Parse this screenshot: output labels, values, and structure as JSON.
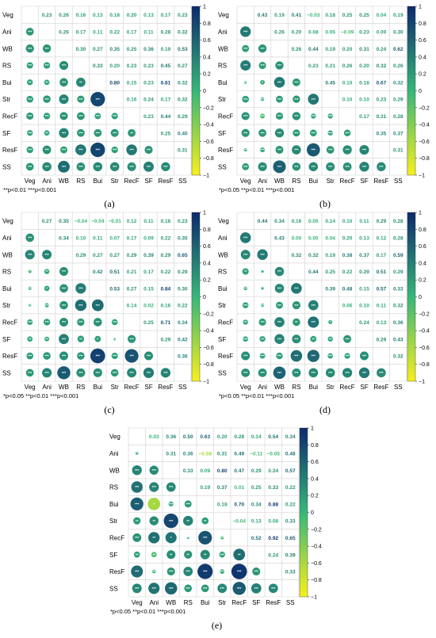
{
  "colors": {
    "low": "#f7f01a",
    "mid": "#35b779",
    "high": "#0c2a6e",
    "grid": "#d0d0d0"
  },
  "chart_data": [
    {
      "type": "heatmap",
      "panel_label": "(a)",
      "variables": [
        "Veg",
        "Ani",
        "WB",
        "RS",
        "Bui",
        "Str",
        "RecF",
        "SF",
        "ResF",
        "SS"
      ],
      "footnote": "**p<0.01   ***p<0.001",
      "colorbar_ticks": [
        "1",
        "0.8",
        "0.6",
        "0.4",
        "0.2",
        "0",
        "−0.2",
        "−0.4",
        "−0.6",
        "−0.8",
        "−1"
      ],
      "upper_values": [
        [
          "0.23",
          "0.26",
          "0.16",
          "0.13",
          "0.18",
          "0.20",
          "0.13",
          "0.17",
          "0.23"
        ],
        [
          "0.26",
          "0.17",
          "0.11",
          "0.22",
          "0.17",
          "0.11",
          "0.28",
          "0.32"
        ],
        [
          "0.30",
          "0.27",
          "0.35",
          "0.25",
          "0.36",
          "0.19",
          "0.53"
        ],
        [
          "0.33",
          "0.20",
          "0.23",
          "0.23",
          "0.45",
          "0.27"
        ],
        [
          "0.80",
          "0.15",
          "0.23",
          "0.81",
          "0.32"
        ],
        [
          "0.16",
          "0.24",
          "0.17",
          "0.32"
        ],
        [
          "0.23",
          "0.44",
          "0.29"
        ],
        [
          "0.25",
          "0.40"
        ],
        [
          "0.31"
        ]
      ],
      "lower_sig": [
        [
          "***"
        ],
        [
          "***",
          "***"
        ],
        [
          "***",
          "***",
          "***"
        ],
        [
          "**",
          "**",
          "***",
          "**"
        ],
        [
          "***",
          "***",
          "***",
          "***",
          "***"
        ],
        [
          "***",
          "***",
          "***",
          "***",
          "***",
          "***"
        ],
        [
          "***",
          "**",
          "***",
          "***",
          "***",
          "***",
          "**"
        ],
        [
          "***",
          "***",
          "***",
          "***",
          "***",
          "***",
          "***",
          "***"
        ],
        [
          "***",
          "***",
          "***",
          "***",
          "***",
          "***",
          "***",
          "***",
          "***"
        ]
      ]
    },
    {
      "type": "heatmap",
      "panel_label": "(b)",
      "variables": [
        "Veg",
        "Ani",
        "WB",
        "RS",
        "Bui",
        "Str",
        "RecF",
        "SF",
        "ResF",
        "SS"
      ],
      "footnote": "*p<0.05   **p<0.01   ***p<0.001",
      "colorbar_ticks": [
        "1",
        "0.8",
        "0.6",
        "0.4",
        "0.2",
        "0",
        "−0.2",
        "−0.4",
        "−0.6",
        "−0.8",
        "−1"
      ],
      "upper_values": [
        [
          "0.43",
          "0.19",
          "0.41",
          "−0.03",
          "0.18",
          "0.25",
          "0.25",
          "0.04",
          "0.19"
        ],
        [
          "0.26",
          "0.20",
          "0.08",
          "0.05",
          "−0.09",
          "0.23",
          "0.09",
          "0.30"
        ],
        [
          "0.26",
          "0.44",
          "0.19",
          "0.20",
          "0.31",
          "0.24",
          "0.62"
        ],
        [
          "0.23",
          "0.21",
          "0.26",
          "0.20",
          "0.32",
          "0.26"
        ],
        [
          "0.45",
          "0.10",
          "0.18",
          "0.67",
          "0.32"
        ],
        [
          "0.10",
          "0.10",
          "0.23",
          "0.29"
        ],
        [
          "0.17",
          "0.31",
          "0.28"
        ],
        [
          "0.35",
          "0.37"
        ],
        [
          "0.31"
        ]
      ],
      "lower_sig": [
        [
          "***"
        ],
        [
          "***",
          "***"
        ],
        [
          "***",
          "***",
          "***"
        ],
        [
          "**",
          "*",
          "***",
          "***"
        ],
        [
          "***",
          "***",
          "***",
          "***",
          "***"
        ],
        [
          "***",
          "***",
          "***",
          "***",
          "***",
          "***"
        ],
        [
          "***",
          "***",
          "***",
          "***",
          "***",
          "***",
          "***"
        ],
        [
          "**",
          "***",
          "***",
          "***",
          "***",
          "***",
          "***",
          "***"
        ],
        [
          "***",
          "***",
          "***",
          "***",
          "***",
          "***",
          "***",
          "***",
          "***"
        ]
      ]
    },
    {
      "type": "heatmap",
      "panel_label": "(c)",
      "variables": [
        "Veg",
        "Ani",
        "WB",
        "RS",
        "Bui",
        "Str",
        "RecF",
        "SF",
        "ResF",
        "SS"
      ],
      "footnote": "*p<0.05   **p<0.01   ***p<0.001",
      "colorbar_ticks": [
        "1",
        "0.8",
        "0.6",
        "0.4",
        "0.2",
        "0",
        "−0.2",
        "−0.4",
        "−0.6",
        "−0.8",
        "−1"
      ],
      "upper_values": [
        [
          "0.27",
          "0.35",
          "−0.04",
          "−0.04",
          "−0.01",
          "0.12",
          "0.11",
          "0.18",
          "0.23"
        ],
        [
          "0.34",
          "0.10",
          "0.11",
          "0.07",
          "0.17",
          "0.09",
          "0.22",
          "0.35"
        ],
        [
          "0.29",
          "0.27",
          "0.27",
          "0.29",
          "0.39",
          "0.29",
          "0.65"
        ],
        [
          "0.42",
          "0.51",
          "0.21",
          "0.17",
          "0.22",
          "0.29"
        ],
        [
          "0.53",
          "0.27",
          "0.15",
          "0.84",
          "0.30"
        ],
        [
          "0.14",
          "0.02",
          "0.16",
          "0.22"
        ],
        [
          "0.25",
          "0.71",
          "0.34"
        ],
        [
          "0.29",
          "0.42"
        ],
        [
          "0.36"
        ]
      ],
      "lower_sig": [
        [
          "***"
        ],
        [
          "***",
          "***"
        ],
        [
          "*",
          "**",
          "***"
        ],
        [
          "**",
          "*",
          "***",
          "***"
        ],
        [
          "*",
          "***",
          "***",
          "***",
          "***"
        ],
        [
          "***",
          "***",
          "***",
          "***",
          "***",
          "***"
        ],
        [
          "**",
          "**",
          "***",
          "**",
          "*",
          "**",
          "***"
        ],
        [
          "***",
          "***",
          "***",
          "***",
          "***",
          "***",
          "***",
          "***"
        ],
        [
          "***",
          "***",
          "***",
          "***",
          "***",
          "***",
          "***",
          "***",
          "***"
        ]
      ]
    },
    {
      "type": "heatmap",
      "panel_label": "(d)",
      "variables": [
        "Veg",
        "Ani",
        "WB",
        "RS",
        "Bui",
        "Str",
        "RecF",
        "SF",
        "ResF",
        "SS"
      ],
      "footnote": "*p<0.05   **p<0.01   ***p<0.001",
      "colorbar_ticks": [
        "1",
        "0.8",
        "0.6",
        "0.4",
        "0.2",
        "0",
        "−0.2",
        "−0.4",
        "−0.6",
        "−0.8",
        "−1"
      ],
      "upper_values": [
        [
          "0.44",
          "0.34",
          "0.16",
          "0.05",
          "0.14",
          "0.10",
          "0.11",
          "0.29",
          "0.28"
        ],
        [
          "0.43",
          "0.00",
          "0.00",
          "0.04",
          "0.20",
          "0.13",
          "0.12",
          "0.28"
        ],
        [
          "0.32",
          "0.32",
          "0.19",
          "0.38",
          "0.37",
          "0.17",
          "0.59"
        ],
        [
          "0.44",
          "0.25",
          "0.22",
          "0.29",
          "0.51",
          "0.29"
        ],
        [
          "0.39",
          "0.48",
          "0.15",
          "0.57",
          "0.33"
        ],
        [
          "0.06",
          "0.10",
          "0.11",
          "0.32"
        ],
        [
          "0.24",
          "0.13",
          "0.36"
        ],
        [
          "0.29",
          "0.43"
        ],
        [
          "0.32"
        ]
      ],
      "lower_sig": [
        [
          "***"
        ],
        [
          "***",
          "***"
        ],
        [
          "**",
          "",
          "***"
        ],
        [
          "**",
          "",
          "***",
          "***"
        ],
        [
          "***",
          "***",
          "***",
          "***",
          "***"
        ],
        [
          "**",
          "***",
          "***",
          "**",
          "***",
          "*"
        ],
        [
          "***",
          "**",
          "***",
          "***",
          "**",
          "**",
          "***"
        ],
        [
          "***",
          "***",
          "***",
          "***",
          "***",
          "***",
          "***",
          "***"
        ],
        [
          "***",
          "***",
          "***",
          "***",
          "***",
          "***",
          "***",
          "***",
          "***"
        ]
      ]
    },
    {
      "type": "heatmap",
      "panel_label": "(e)",
      "variables": [
        "Veg",
        "Ani",
        "WB",
        "RS",
        "Bui",
        "Str",
        "RecF",
        "SF",
        "ResF",
        "SS"
      ],
      "footnote": "*p<0.05   **p<0.01   ***p<0.001",
      "colorbar_ticks": [
        "1",
        "0.8",
        "0.6",
        "0.4",
        "0.2",
        "0",
        "−0.2",
        "−0.4",
        "−0.6",
        "−0.8",
        "−1"
      ],
      "upper_values": [
        [
          "0.03",
          "0.36",
          "0.50",
          "0.63",
          "0.20",
          "0.28",
          "0.14",
          "0.54",
          "0.34"
        ],
        [
          "0.31",
          "0.36",
          "−0.58",
          "0.31",
          "0.49",
          "−0.11",
          "−0.05",
          "0.48"
        ],
        [
          "0.33",
          "0.09",
          "0.80",
          "0.47",
          "0.29",
          "0.24",
          "0.57"
        ],
        [
          "0.19",
          "0.37",
          "0.01",
          "0.25",
          "0.33",
          "0.22"
        ],
        [
          "0.18",
          "0.70",
          "0.34",
          "0.88",
          "0.22"
        ],
        [
          "−0.04",
          "0.13",
          "0.08",
          "0.33"
        ],
        [
          "0.52",
          "0.92",
          "0.65"
        ],
        [
          "0.24",
          "0.39"
        ],
        [
          "0.33"
        ]
      ],
      "lower_sig": [
        [
          "*"
        ],
        [
          "***",
          "***"
        ],
        [
          "***",
          "***",
          "***"
        ],
        [
          "***",
          "*",
          "***",
          "***"
        ],
        [
          "**",
          "**",
          "***",
          "**",
          "**"
        ],
        [
          "***",
          "**",
          "*",
          "**",
          "***",
          "**"
        ],
        [
          "**",
          "**",
          "**",
          "**",
          "**",
          "***",
          "**"
        ],
        [
          "***",
          "**",
          "***",
          "***",
          "***",
          "***",
          "***",
          "***"
        ],
        [
          "***",
          "***",
          "***",
          "***",
          "***",
          "***",
          "***",
          "***",
          "***"
        ]
      ]
    }
  ]
}
